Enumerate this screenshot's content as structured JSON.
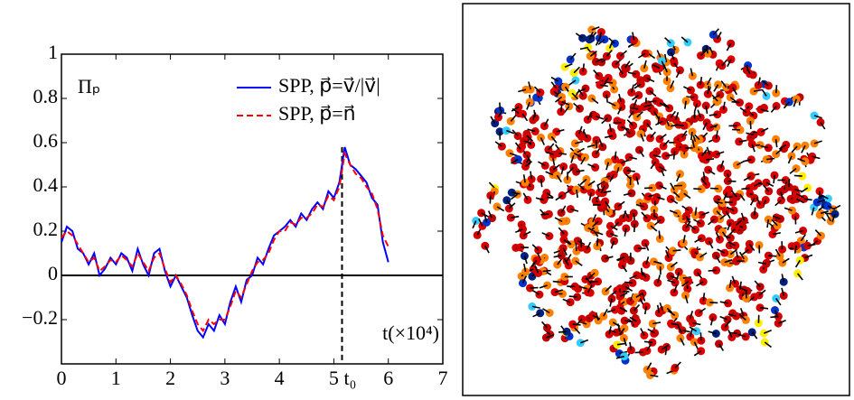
{
  "chart_data": {
    "type": "line",
    "annotations": {
      "y_name": "Πₚ",
      "x_name": "t(×10⁴)",
      "t0_label": "t₀"
    },
    "t0": 5.15,
    "x": [
      0,
      0.1,
      0.2,
      0.3,
      0.4,
      0.5,
      0.6,
      0.7,
      0.8,
      0.9,
      1,
      1.1,
      1.2,
      1.3,
      1.4,
      1.5,
      1.6,
      1.7,
      1.8,
      1.9,
      2,
      2.1,
      2.2,
      2.3,
      2.4,
      2.5,
      2.6,
      2.7,
      2.8,
      2.9,
      3,
      3.1,
      3.2,
      3.3,
      3.4,
      3.5,
      3.6,
      3.7,
      3.8,
      3.9,
      4,
      4.1,
      4.2,
      4.3,
      4.4,
      4.5,
      4.6,
      4.7,
      4.8,
      4.9,
      5,
      5.1,
      5.2,
      5.3,
      5.4,
      5.5,
      5.6,
      5.7,
      5.8,
      5.9,
      6
    ],
    "series": [
      {
        "name": "SPP, p⃗=v⃗/|v⃗|",
        "color": "#0000ff",
        "dash": false,
        "values": [
          0.15,
          0.22,
          0.2,
          0.12,
          0.1,
          0.05,
          0.1,
          0.0,
          0.03,
          0.08,
          0.05,
          0.1,
          0.08,
          0.02,
          0.12,
          0.05,
          0.0,
          0.1,
          0.12,
          0.02,
          -0.05,
          0.0,
          -0.05,
          -0.1,
          -0.18,
          -0.25,
          -0.28,
          -0.22,
          -0.25,
          -0.18,
          -0.22,
          -0.12,
          -0.05,
          -0.12,
          -0.02,
          0.0,
          0.08,
          0.05,
          0.12,
          0.18,
          0.2,
          0.22,
          0.25,
          0.22,
          0.28,
          0.25,
          0.3,
          0.33,
          0.3,
          0.38,
          0.35,
          0.42,
          0.58,
          0.5,
          0.48,
          0.45,
          0.42,
          0.35,
          0.32,
          0.15,
          0.06
        ]
      },
      {
        "name": "SPP, p⃗=n⃗",
        "color": "#ff0000",
        "dash": true,
        "values": [
          0.17,
          0.2,
          0.18,
          0.14,
          0.1,
          0.06,
          0.08,
          0.02,
          0.04,
          0.07,
          0.06,
          0.09,
          0.07,
          0.04,
          0.1,
          0.06,
          0.02,
          0.08,
          0.1,
          0.03,
          -0.03,
          0.0,
          -0.04,
          -0.09,
          -0.16,
          -0.22,
          -0.25,
          -0.2,
          -0.22,
          -0.2,
          -0.2,
          -0.14,
          -0.07,
          -0.1,
          -0.04,
          0.02,
          0.06,
          0.07,
          0.1,
          0.16,
          0.2,
          0.2,
          0.24,
          0.23,
          0.26,
          0.26,
          0.28,
          0.32,
          0.31,
          0.36,
          0.34,
          0.4,
          0.55,
          0.5,
          0.46,
          0.44,
          0.4,
          0.37,
          0.3,
          0.18,
          0.13
        ]
      }
    ],
    "xlim": [
      0,
      7
    ],
    "xticks": [
      0,
      1,
      2,
      3,
      4,
      5,
      6,
      7
    ],
    "ylim": [
      -0.4,
      1
    ],
    "yticks": [
      {
        "value": -0.2,
        "label": "−0.2"
      },
      0,
      0.2,
      0.4,
      0.6,
      0.8,
      1
    ]
  }
}
